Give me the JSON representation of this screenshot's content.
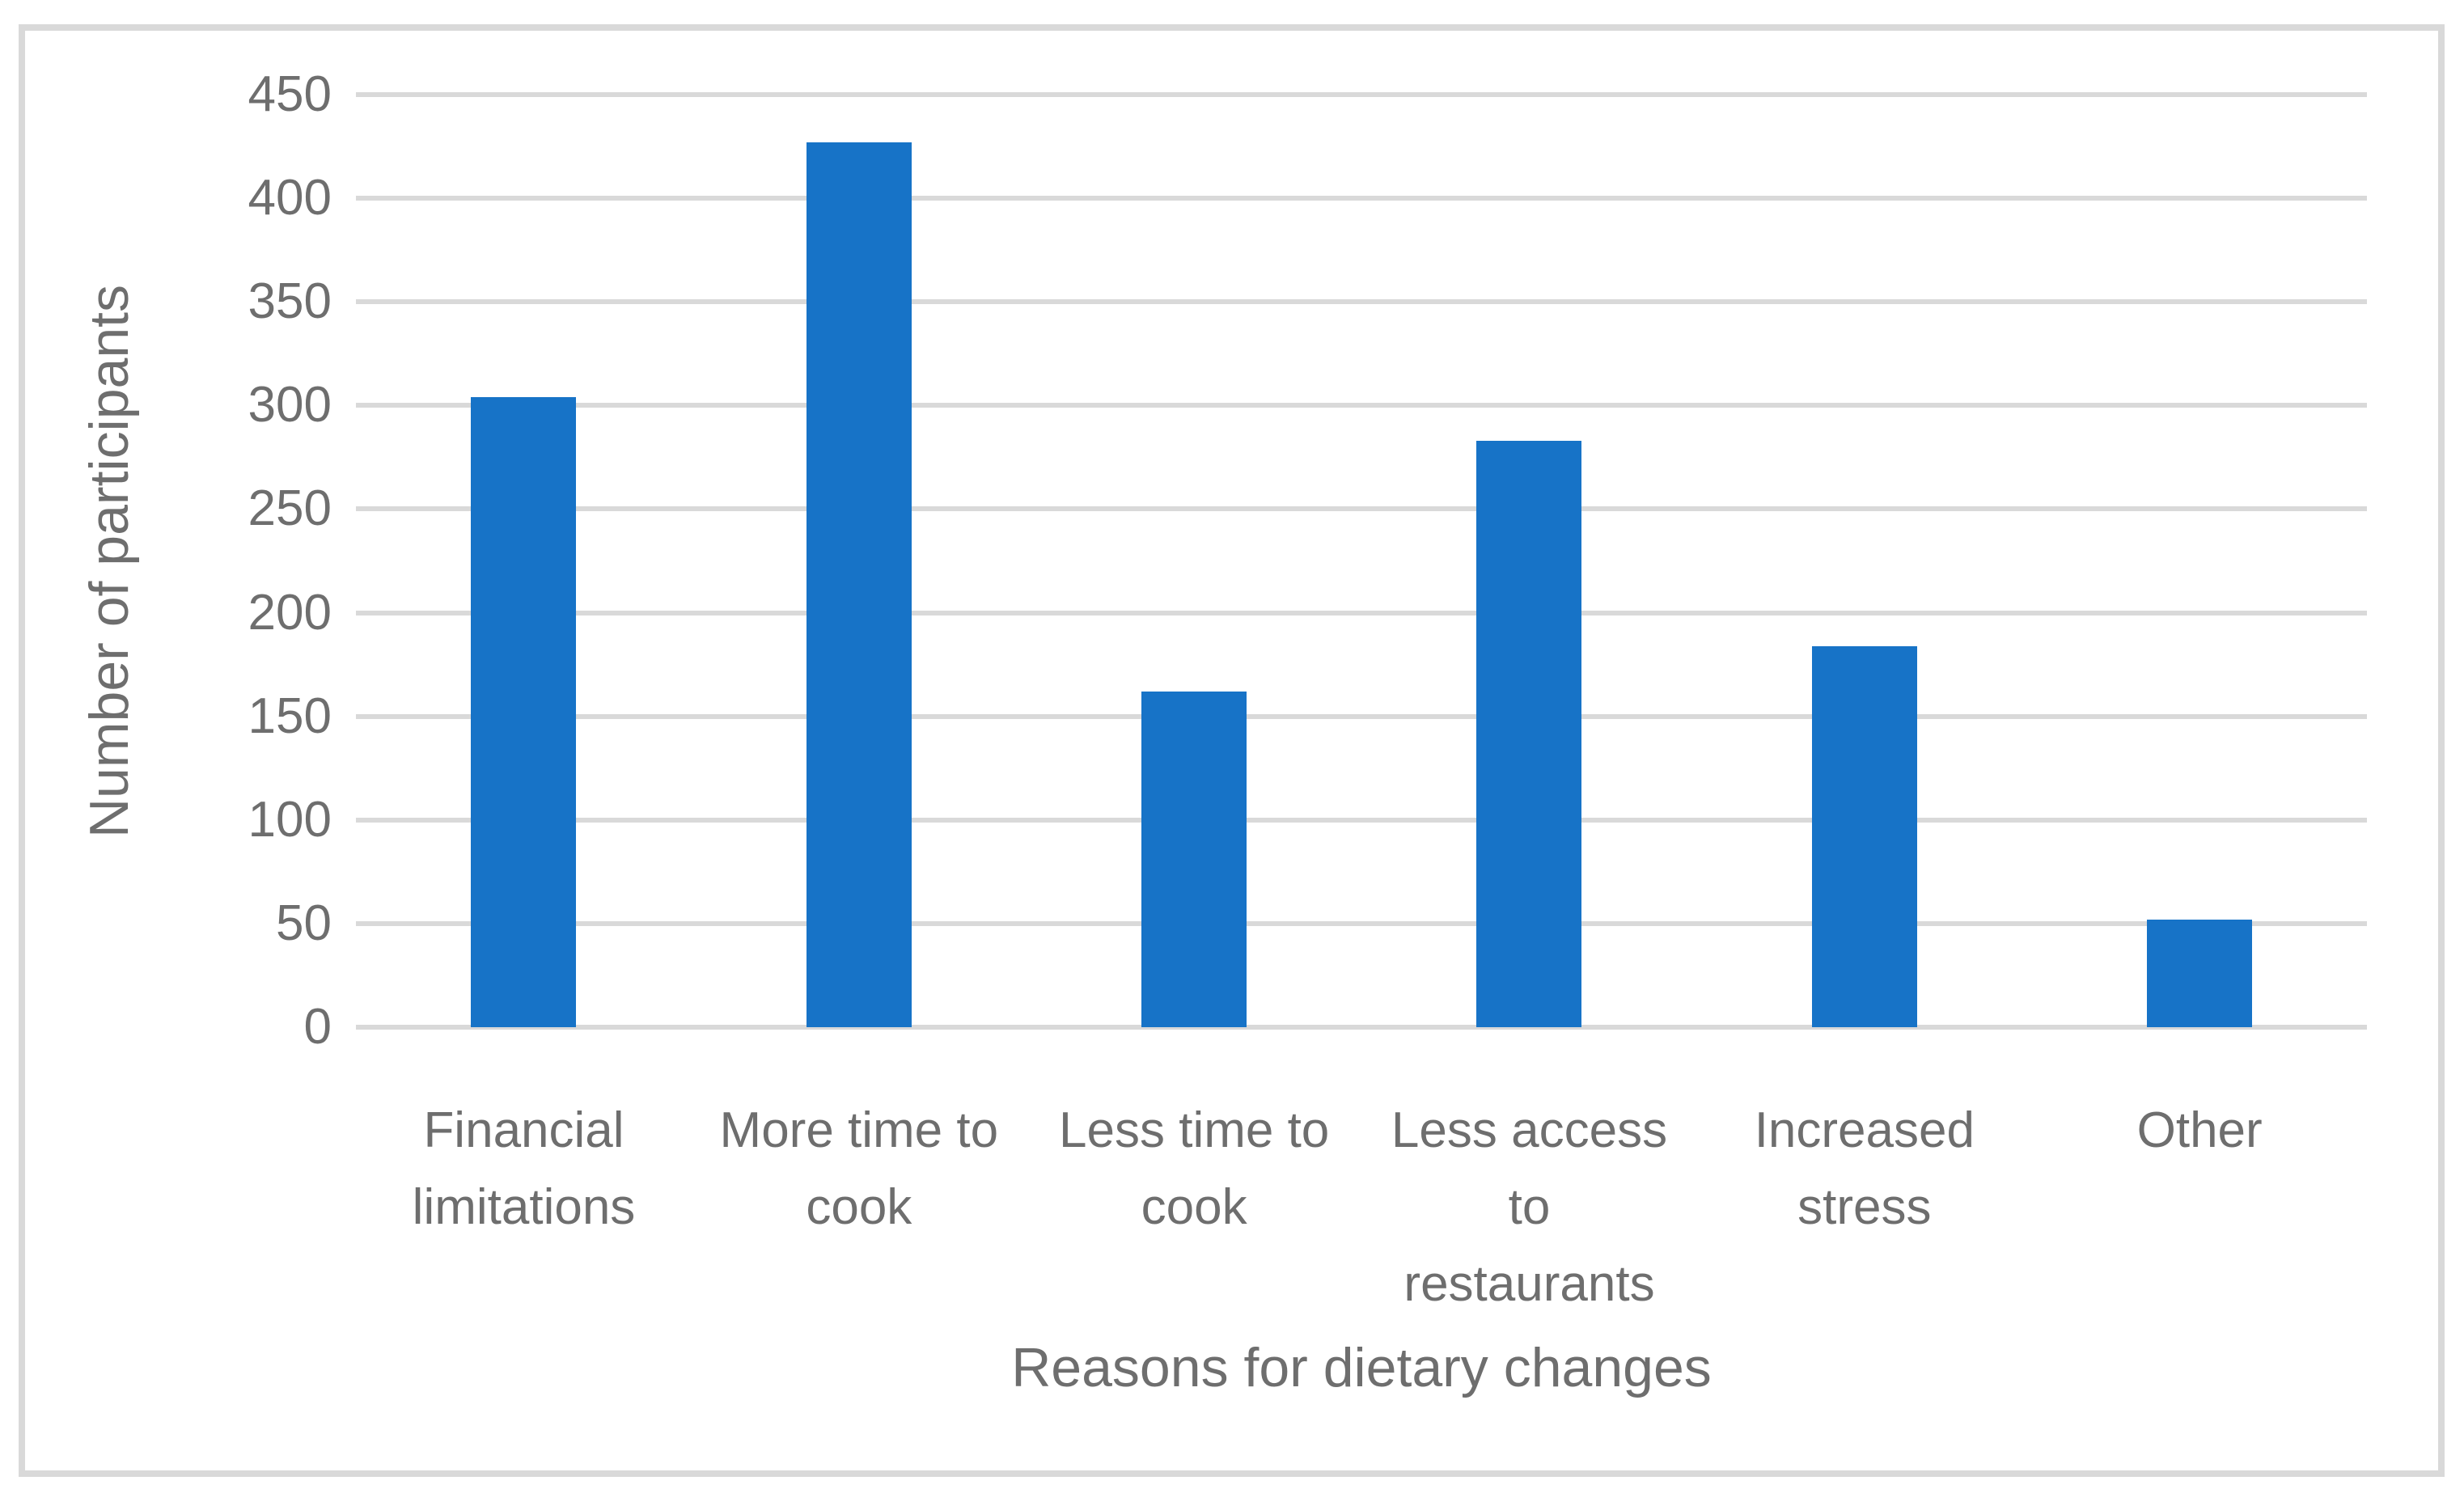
{
  "chart_data": {
    "type": "bar",
    "title": "",
    "xlabel": "Reasons for dietary changes",
    "ylabel": "Number of participants",
    "categories": [
      "Financial limitations",
      "More time to cook",
      "Less time to cook",
      "Less access to restaurants",
      "Increased stress",
      "Other"
    ],
    "categories_wrapped": [
      "Financial\nlimitations",
      "More time to\ncook",
      "Less time to\ncook",
      "Less access\nto\nrestaurants",
      "Increased\nstress",
      "Other"
    ],
    "values": [
      304,
      427,
      162,
      283,
      184,
      52
    ],
    "ylim": [
      0,
      450
    ],
    "yticks": [
      0,
      50,
      100,
      150,
      200,
      250,
      300,
      350,
      400,
      450
    ],
    "grid": true,
    "legend": false,
    "bar_color": "#1773C7",
    "gridline_color": "#D9D9D9",
    "border_color": "#D9D9D9",
    "text_color": "#6E6E6E"
  }
}
